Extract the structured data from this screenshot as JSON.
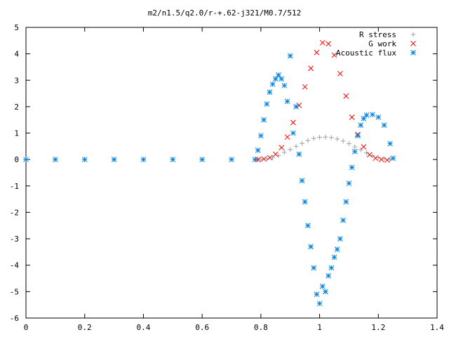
{
  "chart_data": {
    "type": "scatter",
    "title": "m2/n1.5/q2.0/r-+.62-j321/M0.7/512",
    "xlabel": "",
    "ylabel": "",
    "xlim": [
      0,
      1.4
    ],
    "ylim": [
      -6,
      5
    ],
    "x_ticks": [
      "0",
      "0.2",
      "0.4",
      "0.6",
      "0.8",
      "1",
      "1.2",
      "1.4"
    ],
    "y_ticks": [
      "-6",
      "-5",
      "-4",
      "-3",
      "-2",
      "-1",
      "0",
      "1",
      "2",
      "3",
      "4",
      "5"
    ],
    "grid": false,
    "legend_position": "top-right",
    "series": [
      {
        "name": "R stress",
        "marker": "plus",
        "color": "#a0a0a0",
        "points": [
          [
            0.0,
            0.0
          ],
          [
            0.1,
            0.0
          ],
          [
            0.2,
            0.0
          ],
          [
            0.3,
            0.0
          ],
          [
            0.4,
            0.0
          ],
          [
            0.5,
            0.0
          ],
          [
            0.6,
            0.0
          ],
          [
            0.7,
            0.0
          ],
          [
            0.79,
            0.0
          ],
          [
            0.8,
            0.01
          ],
          [
            0.82,
            0.03
          ],
          [
            0.84,
            0.07
          ],
          [
            0.86,
            0.15
          ],
          [
            0.88,
            0.27
          ],
          [
            0.9,
            0.38
          ],
          [
            0.92,
            0.5
          ],
          [
            0.94,
            0.61
          ],
          [
            0.96,
            0.72
          ],
          [
            0.98,
            0.8
          ],
          [
            1.0,
            0.84
          ],
          [
            1.02,
            0.85
          ],
          [
            1.04,
            0.83
          ],
          [
            1.06,
            0.78
          ],
          [
            1.08,
            0.7
          ],
          [
            1.1,
            0.6
          ],
          [
            1.12,
            0.48
          ],
          [
            1.14,
            0.37
          ],
          [
            1.16,
            0.25
          ],
          [
            1.18,
            0.15
          ],
          [
            1.2,
            0.07
          ],
          [
            1.22,
            0.02
          ],
          [
            1.24,
            0.0
          ]
        ]
      },
      {
        "name": "G work",
        "marker": "cross",
        "color": "#ff0000",
        "points": [
          [
            0.79,
            0.0
          ],
          [
            0.81,
            0.02
          ],
          [
            0.83,
            0.07
          ],
          [
            0.85,
            0.2
          ],
          [
            0.87,
            0.45
          ],
          [
            0.89,
            0.85
          ],
          [
            0.91,
            1.4
          ],
          [
            0.93,
            2.05
          ],
          [
            0.95,
            2.75
          ],
          [
            0.97,
            3.45
          ],
          [
            0.99,
            4.05
          ],
          [
            1.01,
            4.42
          ],
          [
            1.03,
            4.38
          ],
          [
            1.05,
            3.95
          ],
          [
            1.07,
            3.25
          ],
          [
            1.09,
            2.4
          ],
          [
            1.11,
            1.6
          ],
          [
            1.13,
            0.95
          ],
          [
            1.15,
            0.48
          ],
          [
            1.17,
            0.18
          ],
          [
            1.19,
            0.05
          ],
          [
            1.21,
            0.0
          ],
          [
            1.23,
            -0.02
          ]
        ]
      },
      {
        "name": "Acoustic flux",
        "marker": "star",
        "color": "#0080e0",
        "points": [
          [
            0.0,
            0.0
          ],
          [
            0.1,
            0.0
          ],
          [
            0.2,
            0.0
          ],
          [
            0.3,
            0.0
          ],
          [
            0.4,
            0.0
          ],
          [
            0.5,
            0.0
          ],
          [
            0.6,
            0.0
          ],
          [
            0.7,
            0.0
          ],
          [
            0.78,
            0.0
          ],
          [
            0.79,
            0.35
          ],
          [
            0.8,
            0.9
          ],
          [
            0.81,
            1.5
          ],
          [
            0.82,
            2.1
          ],
          [
            0.83,
            2.55
          ],
          [
            0.84,
            2.85
          ],
          [
            0.85,
            3.05
          ],
          [
            0.86,
            3.2
          ],
          [
            0.87,
            3.05
          ],
          [
            0.88,
            2.8
          ],
          [
            0.89,
            2.2
          ],
          [
            0.9,
            3.92
          ],
          [
            0.91,
            1.0
          ],
          [
            0.92,
            2.0
          ],
          [
            0.93,
            0.2
          ],
          [
            0.94,
            -0.8
          ],
          [
            0.95,
            -1.6
          ],
          [
            0.96,
            -2.5
          ],
          [
            0.97,
            -3.3
          ],
          [
            0.98,
            -4.1
          ],
          [
            0.99,
            -5.1
          ],
          [
            1.0,
            -5.45
          ],
          [
            1.01,
            -4.8
          ],
          [
            1.02,
            -5.0
          ],
          [
            1.03,
            -4.4
          ],
          [
            1.04,
            -4.1
          ],
          [
            1.05,
            -3.7
          ],
          [
            1.06,
            -3.4
          ],
          [
            1.07,
            -3.0
          ],
          [
            1.08,
            -2.3
          ],
          [
            1.09,
            -1.6
          ],
          [
            1.1,
            -0.9
          ],
          [
            1.11,
            -0.3
          ],
          [
            1.12,
            0.3
          ],
          [
            1.13,
            0.9
          ],
          [
            1.14,
            1.3
          ],
          [
            1.15,
            1.55
          ],
          [
            1.16,
            1.68
          ],
          [
            1.18,
            1.7
          ],
          [
            1.2,
            1.6
          ],
          [
            1.22,
            1.3
          ],
          [
            1.24,
            0.6
          ],
          [
            1.25,
            0.05
          ]
        ]
      }
    ]
  }
}
